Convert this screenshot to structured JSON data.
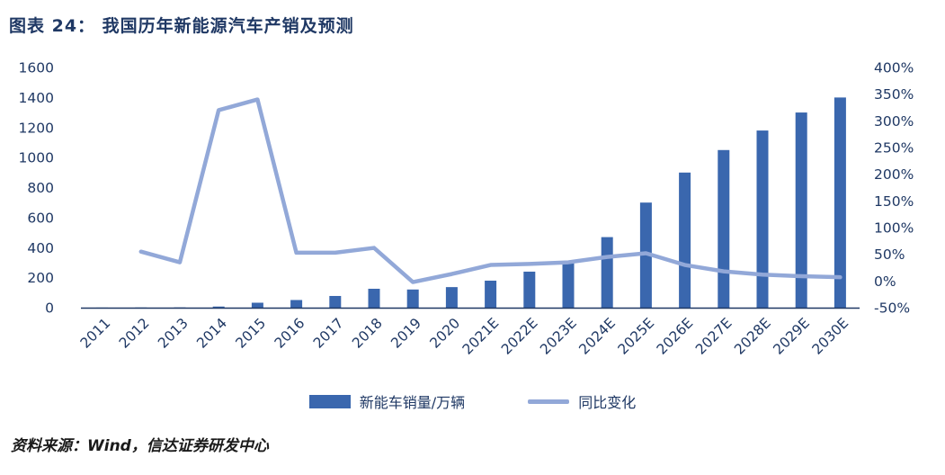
{
  "header": {
    "title": "图表 24： 我国历年新能源汽车产销及预测"
  },
  "footer": {
    "source": "资料来源：Wind，信达证券研发中心"
  },
  "colors": {
    "title": "#1F3864",
    "axis_text": "#1F3864",
    "axis_line": "#1F3864",
    "bar": "#3A67AE",
    "line": "#92A8D8"
  },
  "chart_data": {
    "type": "bar",
    "subtype": "bar+line combo, dual axis",
    "title": "我国历年新能源汽车产销及预测",
    "categories": [
      "2011",
      "2012",
      "2013",
      "2014",
      "2015",
      "2016",
      "2017",
      "2018",
      "2019",
      "2020",
      "2021E",
      "2022E",
      "2023E",
      "2024E",
      "2025E",
      "2026E",
      "2027E",
      "2028E",
      "2029E",
      "2030E"
    ],
    "series": [
      {
        "name": "新能车销量/万辆",
        "type": "bar",
        "axis": "left",
        "values": [
          0.6,
          1.2,
          1.8,
          7.5,
          33,
          51,
          78,
          126,
          121,
          137,
          180,
          240,
          300,
          470,
          700,
          900,
          1050,
          1180,
          1300,
          1400
        ]
      },
      {
        "name": "同比变化",
        "type": "line",
        "axis": "right",
        "values": [
          null,
          55,
          35,
          320,
          340,
          53,
          53,
          62,
          -2,
          13,
          30,
          32,
          35,
          45,
          52,
          30,
          18,
          12,
          9,
          7
        ]
      }
    ],
    "left_axis": {
      "min": 0,
      "max": 1600,
      "step": 200
    },
    "right_axis": {
      "min": -50,
      "max": 400,
      "step": 50,
      "suffix": "%"
    },
    "grid": false,
    "legend_position": "bottom"
  }
}
